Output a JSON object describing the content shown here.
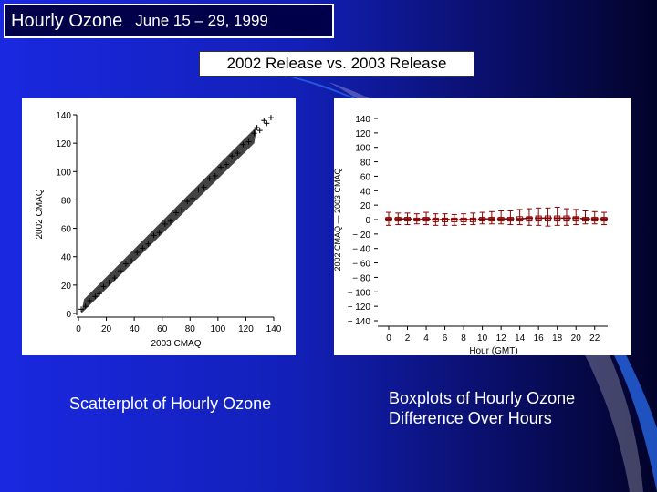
{
  "header": {
    "title": "Hourly Ozone",
    "date_range": "June 15 – 29, 1999",
    "subtitle": "2002 Release vs. 2003 Release"
  },
  "captions": {
    "left": "Scatterplot of Hourly Ozone",
    "right_line1": "Boxplots of Hourly Ozone",
    "right_line2": "Difference Over Hours"
  },
  "colors": {
    "marker": "#000000",
    "box_color": "#8b0000"
  },
  "chart_data": [
    {
      "type": "scatter",
      "title": "",
      "xlabel": "2003 CMAQ",
      "ylabel": "2002 CMAQ",
      "xlim": [
        0,
        140
      ],
      "ylim": [
        0,
        140
      ],
      "x_ticks": [
        "0",
        "20",
        "40",
        "60",
        "80",
        "100",
        "120",
        "140"
      ],
      "y_ticks": [
        "0",
        "20",
        "40",
        "60",
        "80",
        "100",
        "120",
        "140"
      ],
      "marker": "+",
      "series": [
        {
          "x": [
            2,
            5,
            8,
            12,
            15,
            18,
            22,
            26,
            30,
            34,
            38,
            42,
            46,
            50,
            54,
            58,
            62,
            66,
            70,
            74,
            78,
            82,
            86,
            90,
            94,
            98,
            102,
            106,
            110,
            114,
            118,
            122,
            126,
            128,
            130,
            133,
            135,
            138
          ],
          "y": [
            3,
            5,
            9,
            12,
            14,
            19,
            22,
            25,
            30,
            35,
            37,
            43,
            46,
            49,
            55,
            57,
            63,
            65,
            71,
            73,
            79,
            81,
            87,
            89,
            95,
            97,
            103,
            105,
            111,
            113,
            119,
            121,
            127,
            131,
            129,
            136,
            134,
            138
          ]
        }
      ]
    },
    {
      "type": "box",
      "title": "",
      "xlabel": "Hour (GMT)",
      "ylabel": "2002 CMAQ — 2003 CMAQ",
      "xlim": [
        0,
        23
      ],
      "ylim": [
        -140,
        140
      ],
      "x_ticks": [
        "0",
        "2",
        "4",
        "6",
        "8",
        "10",
        "12",
        "14",
        "16",
        "18",
        "20",
        "22"
      ],
      "y_ticks": [
        "140",
        "120",
        "100",
        "80",
        "60",
        "40",
        "20",
        "0",
        "− 20",
        "− 40",
        "− 60",
        "− 80",
        "− 100",
        "− 120",
        "− 140"
      ],
      "hours": [
        0,
        1,
        2,
        3,
        4,
        5,
        6,
        7,
        8,
        9,
        10,
        11,
        12,
        13,
        14,
        15,
        16,
        17,
        18,
        19,
        20,
        21,
        22,
        23
      ],
      "median": [
        1,
        1,
        1,
        0,
        1,
        0,
        0,
        0,
        0,
        0,
        1,
        1,
        1,
        1,
        1,
        2,
        2,
        2,
        2,
        2,
        2,
        1,
        1,
        1
      ],
      "q1": [
        -2,
        -2,
        -2,
        -2,
        -2,
        -3,
        -3,
        -3,
        -3,
        -3,
        -2,
        -2,
        -2,
        -2,
        -2,
        -2,
        -2,
        -2,
        -2,
        -2,
        -2,
        -2,
        -2,
        -2
      ],
      "q3": [
        3,
        3,
        3,
        2,
        3,
        2,
        2,
        2,
        2,
        2,
        3,
        3,
        3,
        3,
        4,
        4,
        5,
        5,
        5,
        5,
        4,
        3,
        3,
        3
      ],
      "whisker_low": [
        -8,
        -7,
        -7,
        -6,
        -7,
        -8,
        -8,
        -8,
        -7,
        -7,
        -6,
        -6,
        -6,
        -7,
        -7,
        -8,
        -8,
        -9,
        -8,
        -8,
        -7,
        -6,
        -6,
        -7
      ],
      "whisker_high": [
        10,
        9,
        9,
        8,
        10,
        8,
        8,
        7,
        8,
        9,
        10,
        11,
        12,
        12,
        14,
        15,
        16,
        16,
        17,
        15,
        14,
        12,
        11,
        10
      ]
    }
  ]
}
